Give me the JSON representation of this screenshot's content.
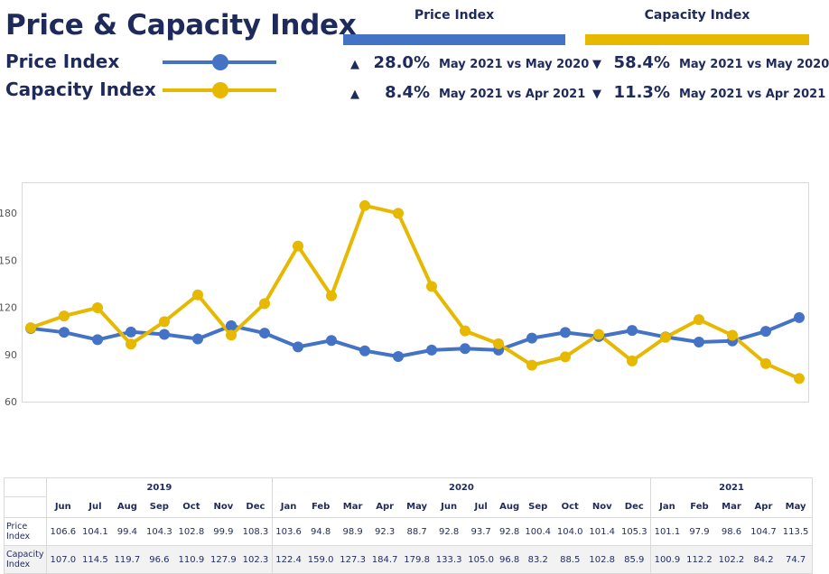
{
  "title": "Price & Capacity Index",
  "legend": [
    {
      "label": "Price Index",
      "color": "#4472c4"
    },
    {
      "label": "Capacity Index",
      "color": "#e6b800"
    }
  ],
  "kpis": [
    {
      "heading": "Price Index",
      "color": "#4472c4",
      "rows": [
        {
          "arrow": "▲",
          "pct": "28.0%",
          "compare": "May 2021 vs May 2020"
        },
        {
          "arrow": "▲",
          "pct": "8.4%",
          "compare": "May 2021 vs Apr 2021"
        }
      ]
    },
    {
      "heading": "Capacity Index",
      "color": "#e6b800",
      "rows": [
        {
          "arrow": "▼",
          "pct": "58.4%",
          "compare": "May 2021 vs May 2020"
        },
        {
          "arrow": "▼",
          "pct": "11.3%",
          "compare": "May 2021 vs Apr 2021"
        }
      ]
    }
  ],
  "chart_data": {
    "type": "line",
    "title": "",
    "xlabel": "",
    "ylabel": "",
    "ylim": [
      60,
      200
    ],
    "yticks": [
      60,
      90,
      120,
      150,
      180
    ],
    "grid": false,
    "x": [
      "Jun 2019",
      "Jul 2019",
      "Aug 2019",
      "Sep 2019",
      "Oct 2019",
      "Nov 2019",
      "Dec 2019",
      "Jan 2020",
      "Feb 2020",
      "Mar 2020",
      "Apr 2020",
      "May 2020",
      "Jun 2020",
      "Jul 2020",
      "Aug 2020",
      "Sep 2020",
      "Oct 2020",
      "Nov 2020",
      "Dec 2020",
      "Jan 2021",
      "Feb 2021",
      "Mar 2021",
      "Apr 2021",
      "May 2021"
    ],
    "series": [
      {
        "name": "Price Index",
        "color": "#4472c4",
        "values": [
          106.6,
          104.1,
          99.4,
          104.3,
          102.8,
          99.9,
          108.3,
          103.6,
          94.8,
          98.9,
          92.3,
          88.7,
          92.8,
          93.7,
          92.8,
          100.4,
          104.0,
          101.4,
          105.3,
          101.1,
          97.9,
          98.6,
          104.7,
          113.5
        ]
      },
      {
        "name": "Capacity Index",
        "color": "#e6b800",
        "values": [
          107.0,
          114.5,
          119.7,
          96.6,
          110.9,
          127.9,
          102.3,
          122.4,
          159.0,
          127.3,
          184.7,
          179.8,
          133.3,
          105.0,
          96.8,
          83.2,
          88.5,
          102.8,
          85.9,
          100.9,
          112.2,
          102.2,
          84.2,
          74.7
        ]
      }
    ]
  },
  "table": {
    "years": [
      {
        "label": "2019",
        "months": [
          "Jun",
          "Jul",
          "Aug",
          "Sep",
          "Oct",
          "Nov",
          "Dec"
        ]
      },
      {
        "label": "2020",
        "months": [
          "Jan",
          "Feb",
          "Mar",
          "Apr",
          "May",
          "Jun",
          "Jul",
          "Aug",
          "Sep",
          "Oct",
          "Nov",
          "Dec"
        ]
      },
      {
        "label": "2021",
        "months": [
          "Jan",
          "Feb",
          "Mar",
          "Apr",
          "May"
        ]
      }
    ],
    "rows": [
      {
        "label": "Price Index",
        "values": [
          "106.6",
          "104.1",
          "99.4",
          "104.3",
          "102.8",
          "99.9",
          "108.3",
          "103.6",
          "94.8",
          "98.9",
          "92.3",
          "88.7",
          "92.8",
          "93.7",
          "92.8",
          "100.4",
          "104.0",
          "101.4",
          "105.3",
          "101.1",
          "97.9",
          "98.6",
          "104.7",
          "113.5"
        ]
      },
      {
        "label": "Capacity Index",
        "values": [
          "107.0",
          "114.5",
          "119.7",
          "96.6",
          "110.9",
          "127.9",
          "102.3",
          "122.4",
          "159.0",
          "127.3",
          "184.7",
          "179.8",
          "133.3",
          "105.0",
          "96.8",
          "83.2",
          "88.5",
          "102.8",
          "85.9",
          "100.9",
          "112.2",
          "102.2",
          "84.2",
          "74.7"
        ]
      }
    ]
  }
}
